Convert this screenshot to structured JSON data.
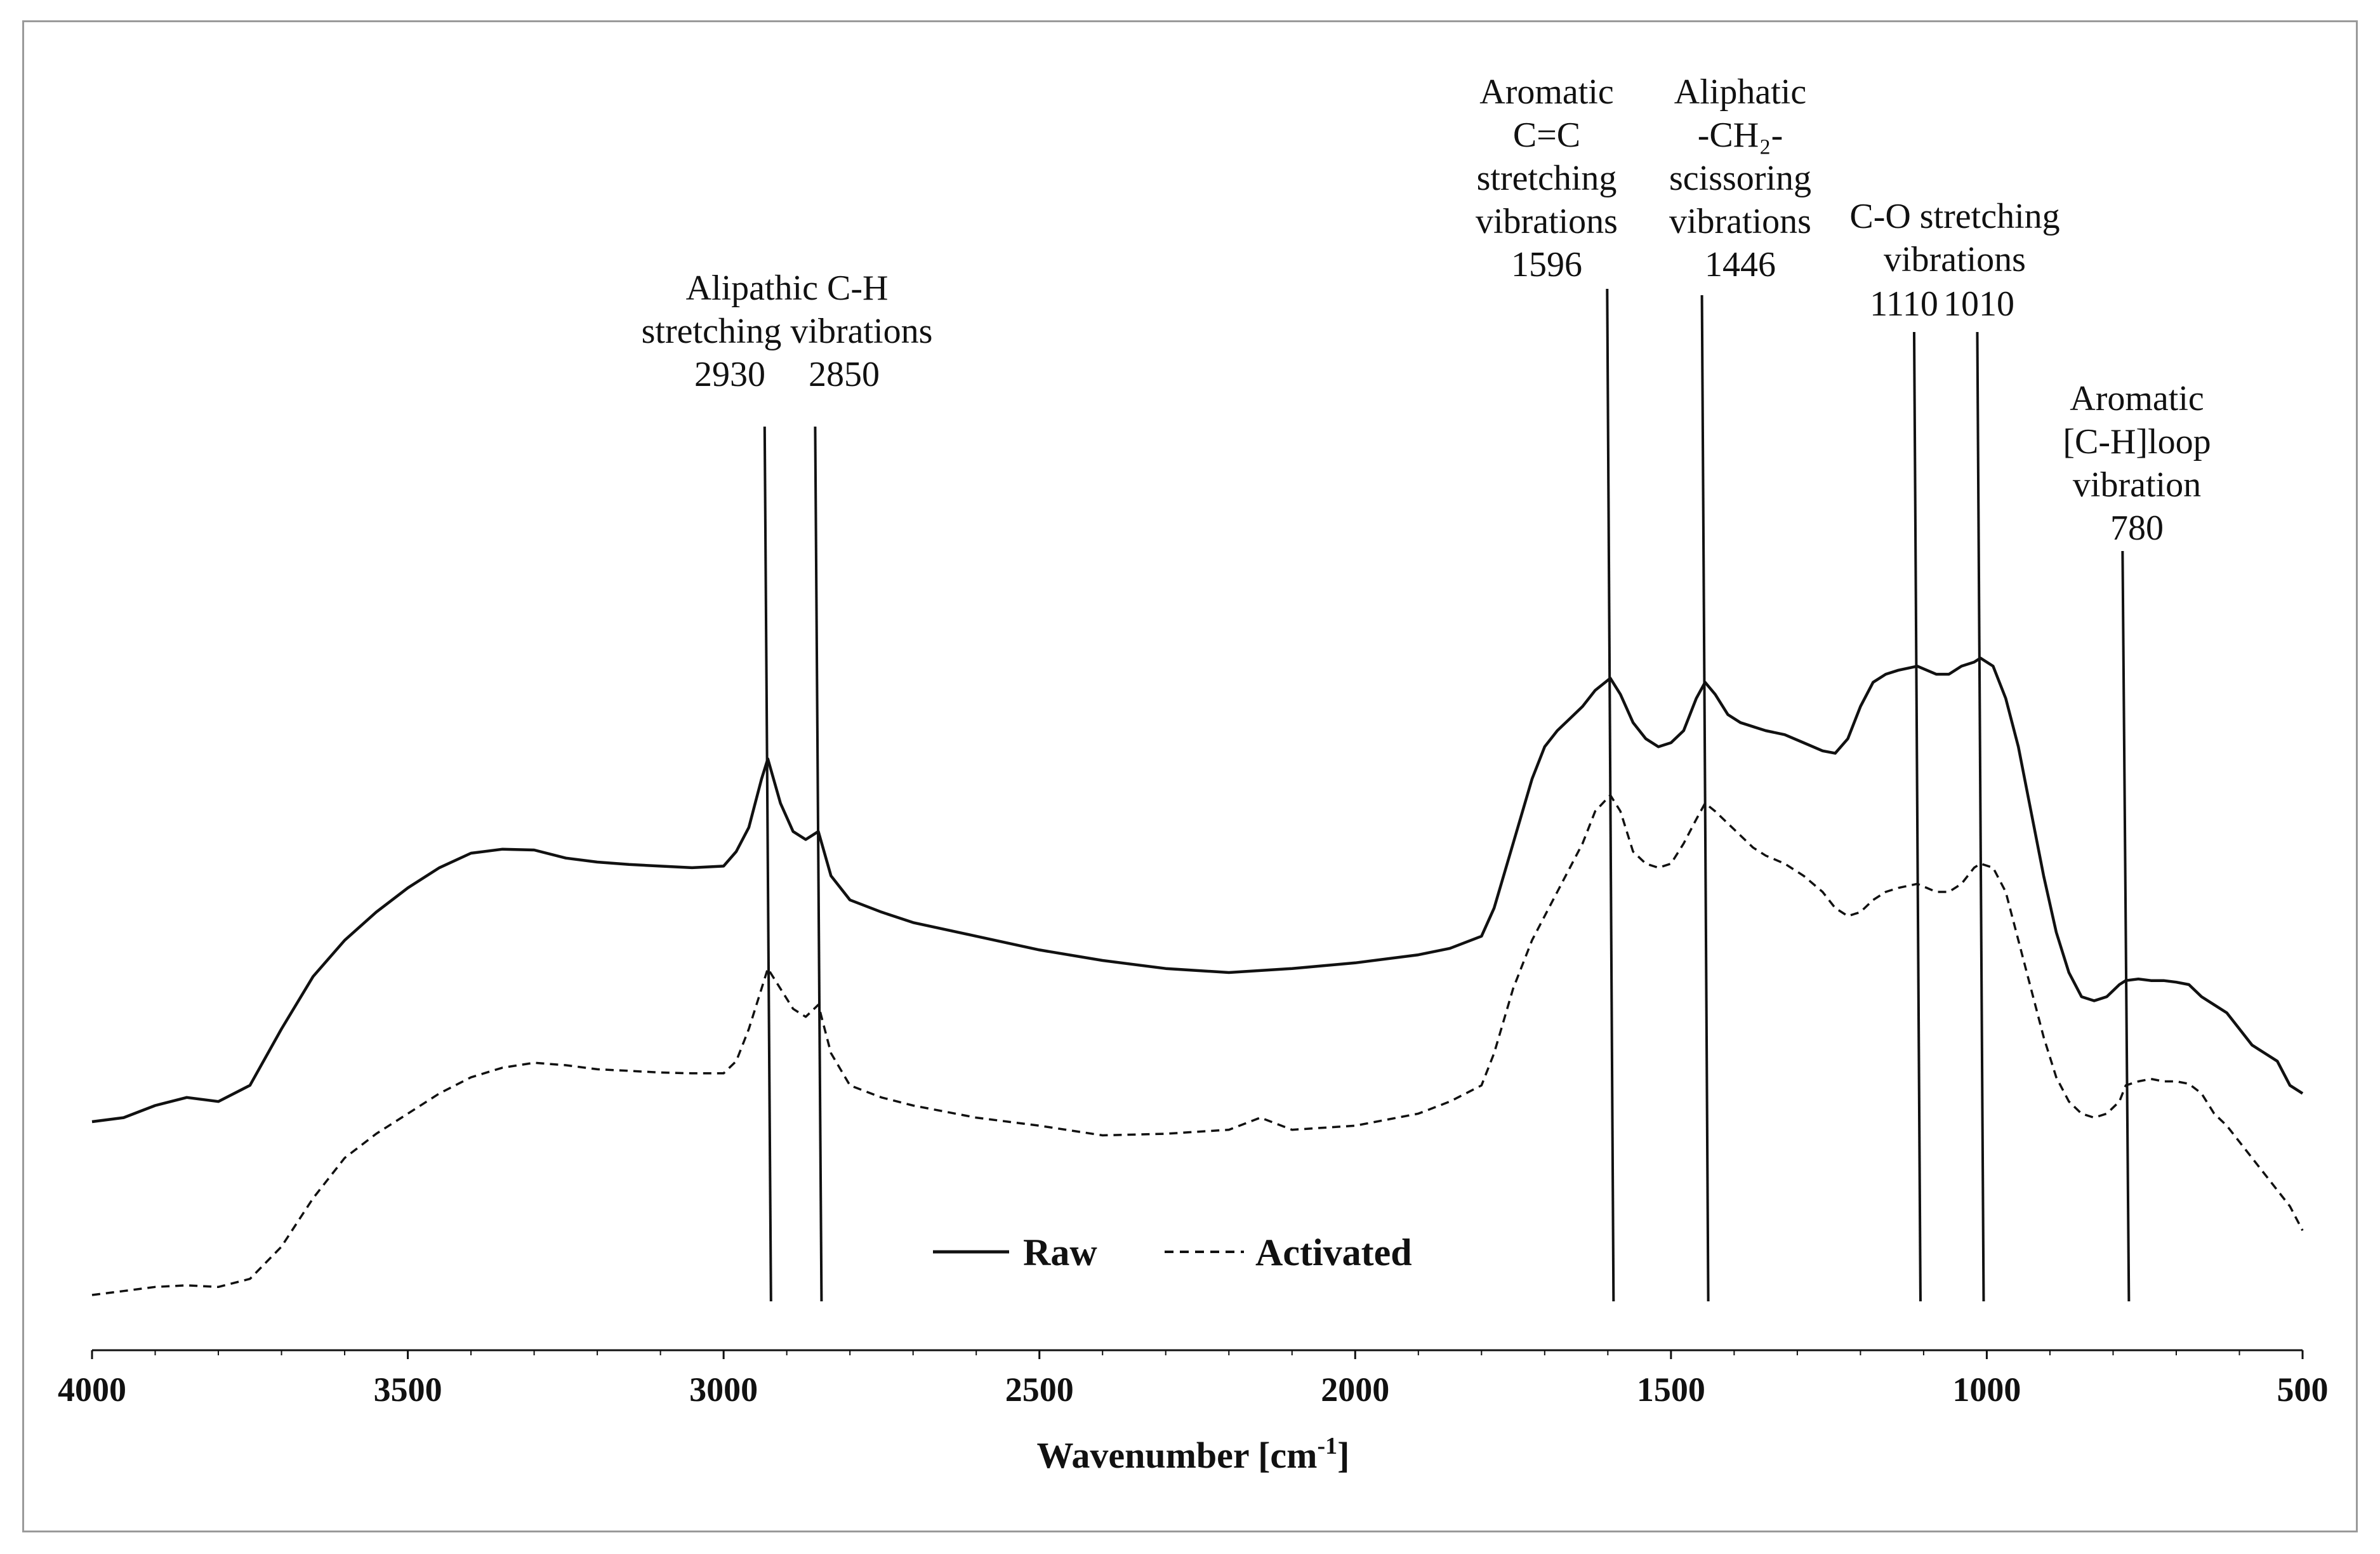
{
  "chart_data": {
    "type": "line",
    "title": "",
    "xlabel": "Wavenumber [cm",
    "xlabel_superscript": "-1",
    "xlabel_suffix": "]",
    "ylabel": "",
    "xlim": [
      4000,
      500
    ],
    "x_reversed": true,
    "x_ticks": [
      4000,
      3500,
      3000,
      2500,
      2000,
      1500,
      1000,
      500
    ],
    "y_units": "arbitrary (transmittance)",
    "legend": {
      "position": "bottom-center",
      "entries": [
        {
          "label": "Raw",
          "style": "solid"
        },
        {
          "label": "Activated",
          "style": "dashed"
        }
      ]
    },
    "series": [
      {
        "name": "Raw",
        "style": "solid",
        "x": [
          4000,
          3950,
          3900,
          3850,
          3800,
          3750,
          3700,
          3650,
          3600,
          3550,
          3500,
          3450,
          3400,
          3350,
          3300,
          3250,
          3200,
          3150,
          3100,
          3050,
          3000,
          2980,
          2960,
          2940,
          2930,
          2910,
          2890,
          2870,
          2850,
          2830,
          2800,
          2750,
          2700,
          2600,
          2500,
          2400,
          2300,
          2200,
          2100,
          2000,
          1900,
          1850,
          1800,
          1780,
          1750,
          1720,
          1700,
          1680,
          1660,
          1640,
          1620,
          1596,
          1580,
          1560,
          1540,
          1520,
          1500,
          1480,
          1460,
          1446,
          1430,
          1410,
          1390,
          1370,
          1350,
          1320,
          1290,
          1260,
          1240,
          1220,
          1200,
          1180,
          1160,
          1140,
          1110,
          1080,
          1060,
          1040,
          1020,
          1010,
          990,
          970,
          950,
          930,
          910,
          890,
          870,
          850,
          830,
          810,
          790,
          780,
          760,
          740,
          720,
          700,
          680,
          660,
          640,
          620,
          600,
          580,
          560,
          540,
          520,
          500
        ],
        "y": [
          0.215,
          0.22,
          0.235,
          0.245,
          0.24,
          0.26,
          0.33,
          0.395,
          0.44,
          0.475,
          0.505,
          0.53,
          0.548,
          0.553,
          0.552,
          0.542,
          0.537,
          0.534,
          0.532,
          0.53,
          0.532,
          0.55,
          0.58,
          0.64,
          0.665,
          0.61,
          0.575,
          0.565,
          0.575,
          0.52,
          0.49,
          0.475,
          0.462,
          0.445,
          0.428,
          0.415,
          0.405,
          0.4,
          0.405,
          0.412,
          0.422,
          0.43,
          0.445,
          0.48,
          0.56,
          0.64,
          0.68,
          0.7,
          0.715,
          0.73,
          0.75,
          0.765,
          0.745,
          0.71,
          0.69,
          0.68,
          0.685,
          0.7,
          0.74,
          0.76,
          0.745,
          0.72,
          0.71,
          0.705,
          0.7,
          0.695,
          0.685,
          0.675,
          0.672,
          0.69,
          0.73,
          0.76,
          0.77,
          0.775,
          0.78,
          0.77,
          0.77,
          0.78,
          0.785,
          0.79,
          0.78,
          0.74,
          0.68,
          0.6,
          0.52,
          0.45,
          0.4,
          0.37,
          0.365,
          0.37,
          0.385,
          0.39,
          0.392,
          0.39,
          0.39,
          0.388,
          0.385,
          0.37,
          0.36,
          0.35,
          0.33,
          0.31,
          0.3,
          0.29,
          0.26,
          0.25
        ]
      },
      {
        "name": "Activated",
        "style": "dashed",
        "x": [
          4000,
          3950,
          3900,
          3850,
          3800,
          3750,
          3700,
          3650,
          3600,
          3550,
          3500,
          3450,
          3400,
          3350,
          3300,
          3250,
          3200,
          3150,
          3100,
          3050,
          3000,
          2980,
          2960,
          2940,
          2930,
          2910,
          2890,
          2870,
          2850,
          2830,
          2800,
          2750,
          2700,
          2600,
          2500,
          2400,
          2300,
          2200,
          2150,
          2100,
          2000,
          1900,
          1850,
          1800,
          1780,
          1750,
          1720,
          1700,
          1680,
          1660,
          1640,
          1620,
          1596,
          1580,
          1560,
          1540,
          1520,
          1500,
          1480,
          1460,
          1446,
          1430,
          1410,
          1390,
          1370,
          1350,
          1320,
          1290,
          1260,
          1240,
          1220,
          1200,
          1180,
          1160,
          1140,
          1110,
          1080,
          1060,
          1040,
          1020,
          1010,
          990,
          970,
          950,
          930,
          910,
          890,
          870,
          850,
          830,
          810,
          790,
          780,
          760,
          740,
          720,
          700,
          680,
          660,
          640,
          620,
          600,
          580,
          560,
          540,
          520,
          500
        ],
        "y": [
          0.0,
          0.005,
          0.01,
          0.012,
          0.01,
          0.02,
          0.06,
          0.12,
          0.17,
          0.2,
          0.225,
          0.25,
          0.27,
          0.282,
          0.288,
          0.285,
          0.28,
          0.278,
          0.276,
          0.275,
          0.275,
          0.29,
          0.33,
          0.38,
          0.405,
          0.38,
          0.355,
          0.345,
          0.36,
          0.3,
          0.26,
          0.245,
          0.235,
          0.22,
          0.21,
          0.198,
          0.2,
          0.205,
          0.22,
          0.205,
          0.21,
          0.225,
          0.24,
          0.26,
          0.3,
          0.38,
          0.44,
          0.47,
          0.5,
          0.53,
          0.56,
          0.6,
          0.62,
          0.6,
          0.55,
          0.535,
          0.53,
          0.535,
          0.56,
          0.59,
          0.61,
          0.6,
          0.585,
          0.57,
          0.555,
          0.545,
          0.535,
          0.52,
          0.5,
          0.48,
          0.47,
          0.475,
          0.49,
          0.5,
          0.505,
          0.51,
          0.5,
          0.5,
          0.51,
          0.53,
          0.535,
          0.53,
          0.5,
          0.44,
          0.38,
          0.32,
          0.27,
          0.24,
          0.225,
          0.22,
          0.225,
          0.24,
          0.26,
          0.265,
          0.268,
          0.265,
          0.265,
          0.262,
          0.25,
          0.225,
          0.21,
          0.19,
          0.17,
          0.15,
          0.13,
          0.11,
          0.08
        ]
      }
    ],
    "annotations": [
      {
        "x": 2930,
        "text_lines": [
          "2930"
        ]
      },
      {
        "x": 2850,
        "text_lines": [
          "2850"
        ]
      },
      {
        "x": 2890,
        "text_lines": [
          "Alipathic C-H",
          "stretching vibrations"
        ]
      },
      {
        "x": 1596,
        "text_lines": [
          "Aromatic",
          "C=C",
          "stretching",
          "vibrations",
          "1596"
        ]
      },
      {
        "x": 1446,
        "text_lines": [
          "Aliphatic",
          "-CH₂-",
          "scissoring",
          "vibrations",
          "1446"
        ]
      },
      {
        "x": 1060,
        "text_lines": [
          "C-O stretching",
          "vibrations"
        ]
      },
      {
        "x": 1110,
        "text_lines": [
          "1110"
        ]
      },
      {
        "x": 1010,
        "text_lines": [
          "1010"
        ]
      },
      {
        "x": 780,
        "text_lines": [
          "Aromatic",
          "[C-H]loop",
          "vibration",
          "780"
        ]
      }
    ]
  }
}
